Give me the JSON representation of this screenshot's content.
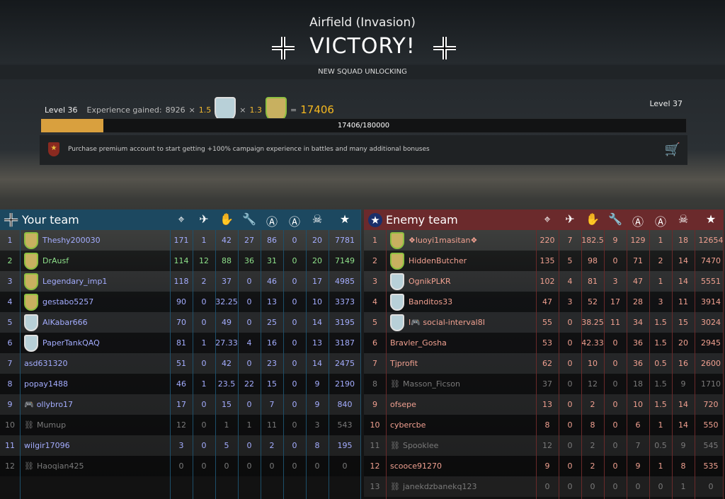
{
  "header": {
    "map": "Airfield (Invasion)",
    "result": "VICTORY!",
    "squad_notice": "NEW SQUAD UNLOCKING"
  },
  "progress": {
    "level_current": "Level 36",
    "exp_label": "Experience gained:",
    "exp_base": "8926",
    "times1": "×",
    "mult1": "1.5",
    "times2": "×",
    "mult2": "1.3",
    "equals": "=",
    "total": "17406",
    "level_next": "Level 37",
    "bar_text": "17406/180000",
    "bar_fraction": 0.0967,
    "bar_color": "#d9a03e"
  },
  "promo": {
    "text": "Purchase premium account to start getting +100% campaign experience in battles and many additional bonuses",
    "badge_icon": "star-icon",
    "cart_icon": "cart-icon"
  },
  "columns": [
    "crosshair-icon",
    "plane-vs-tank-icon",
    "hand-icon",
    "wrench-icon",
    "captured-zone-icon",
    "zone-icon",
    "skull-icon",
    "star-icon"
  ],
  "your_team": {
    "title": "Your team",
    "color": "#1c4860",
    "rows": [
      {
        "rank": "1",
        "name": "Theshy200030",
        "stats": [
          "171",
          "1",
          "42",
          "27",
          "86",
          "0",
          "20",
          "7781"
        ],
        "shield": "gold",
        "state": ""
      },
      {
        "rank": "2",
        "name": "DrAusf",
        "stats": [
          "114",
          "12",
          "88",
          "36",
          "31",
          "0",
          "20",
          "7149"
        ],
        "shield": "gold",
        "state": "self"
      },
      {
        "rank": "3",
        "name": "Legendary_imp1",
        "stats": [
          "118",
          "2",
          "37",
          "0",
          "46",
          "0",
          "17",
          "4985"
        ],
        "shield": "gold",
        "state": ""
      },
      {
        "rank": "4",
        "name": "gestabo5257",
        "stats": [
          "90",
          "0",
          "32.25",
          "0",
          "13",
          "0",
          "10",
          "3373"
        ],
        "shield": "gold",
        "state": ""
      },
      {
        "rank": "5",
        "name": "AlKabar666",
        "stats": [
          "70",
          "0",
          "49",
          "0",
          "25",
          "0",
          "14",
          "3195"
        ],
        "shield": "blue",
        "state": ""
      },
      {
        "rank": "6",
        "name": "PaperTankQAQ",
        "stats": [
          "81",
          "1",
          "27.33",
          "4",
          "16",
          "0",
          "13",
          "3187"
        ],
        "shield": "blue",
        "state": ""
      },
      {
        "rank": "7",
        "name": "asd631320",
        "stats": [
          "51",
          "0",
          "42",
          "0",
          "23",
          "0",
          "14",
          "2475"
        ],
        "shield": "",
        "state": ""
      },
      {
        "rank": "8",
        "name": "popay1488",
        "stats": [
          "46",
          "1",
          "23.5",
          "22",
          "15",
          "0",
          "9",
          "2190"
        ],
        "shield": "",
        "state": ""
      },
      {
        "rank": "9",
        "name": "ollybro17",
        "prefix": "🎮",
        "stats": [
          "17",
          "0",
          "15",
          "0",
          "7",
          "0",
          "9",
          "840"
        ],
        "shield": "",
        "state": ""
      },
      {
        "rank": "10",
        "name": "Mumup",
        "prefix": "⛓",
        "stats": [
          "12",
          "0",
          "1",
          "1",
          "11",
          "0",
          "3",
          "543"
        ],
        "shield": "",
        "state": "dc"
      },
      {
        "rank": "11",
        "name": "wilgir17096",
        "stats": [
          "3",
          "0",
          "5",
          "0",
          "2",
          "0",
          "8",
          "195"
        ],
        "shield": "",
        "state": ""
      },
      {
        "rank": "12",
        "name": "Haoqian425",
        "prefix": "⛓",
        "stats": [
          "0",
          "0",
          "0",
          "0",
          "0",
          "0",
          "0",
          "0"
        ],
        "shield": "",
        "state": "dc"
      }
    ]
  },
  "enemy_team": {
    "title": "Enemy team",
    "color": "#6b2a2c",
    "rows": [
      {
        "rank": "1",
        "name": "❖luoyi1masitan❖",
        "stats": [
          "220",
          "7",
          "182.5",
          "9",
          "129",
          "1",
          "18",
          "12654"
        ],
        "shield": "gold",
        "state": ""
      },
      {
        "rank": "2",
        "name": "HiddenButcher",
        "stats": [
          "135",
          "5",
          "98",
          "0",
          "71",
          "2",
          "14",
          "7470"
        ],
        "shield": "gold",
        "state": ""
      },
      {
        "rank": "3",
        "name": "OgnikPLKR",
        "stats": [
          "102",
          "4",
          "81",
          "3",
          "47",
          "1",
          "14",
          "5551"
        ],
        "shield": "blue",
        "state": ""
      },
      {
        "rank": "4",
        "name": "Banditos33",
        "stats": [
          "47",
          "3",
          "52",
          "17",
          "28",
          "3",
          "11",
          "3914"
        ],
        "shield": "blue",
        "state": ""
      },
      {
        "rank": "5",
        "name": "I🎮 social-interval8I",
        "stats": [
          "55",
          "0",
          "38.25",
          "11",
          "34",
          "1.5",
          "15",
          "3024"
        ],
        "shield": "blue",
        "state": ""
      },
      {
        "rank": "6",
        "name": "Bravler_Gosha",
        "stats": [
          "53",
          "0",
          "42.33",
          "0",
          "36",
          "1.5",
          "20",
          "2945"
        ],
        "shield": "",
        "state": ""
      },
      {
        "rank": "7",
        "name": "Tjprofit",
        "stats": [
          "62",
          "0",
          "10",
          "0",
          "36",
          "0.5",
          "16",
          "2600"
        ],
        "shield": "",
        "state": ""
      },
      {
        "rank": "8",
        "name": "Masson_Ficson",
        "prefix": "⛓",
        "stats": [
          "37",
          "0",
          "12",
          "0",
          "18",
          "1.5",
          "9",
          "1710"
        ],
        "shield": "",
        "state": "dc"
      },
      {
        "rank": "9",
        "name": "ofsepe",
        "stats": [
          "13",
          "0",
          "2",
          "0",
          "10",
          "1.5",
          "14",
          "720"
        ],
        "shield": "",
        "state": ""
      },
      {
        "rank": "10",
        "name": "cybercbe",
        "stats": [
          "8",
          "0",
          "8",
          "0",
          "6",
          "1",
          "14",
          "550"
        ],
        "shield": "",
        "state": ""
      },
      {
        "rank": "11",
        "name": "Spooklee",
        "prefix": "⛓",
        "stats": [
          "12",
          "0",
          "2",
          "0",
          "7",
          "0.5",
          "9",
          "545"
        ],
        "shield": "",
        "state": "dc"
      },
      {
        "rank": "12",
        "name": "scooce91270",
        "stats": [
          "9",
          "0",
          "2",
          "0",
          "9",
          "1",
          "8",
          "535"
        ],
        "shield": "",
        "state": ""
      },
      {
        "rank": "13",
        "name": "janekdzbanekq123",
        "prefix": "⛓",
        "stats": [
          "0",
          "0",
          "0",
          "0",
          "0",
          "0",
          "1",
          "0"
        ],
        "shield": "",
        "state": "dc"
      }
    ]
  }
}
